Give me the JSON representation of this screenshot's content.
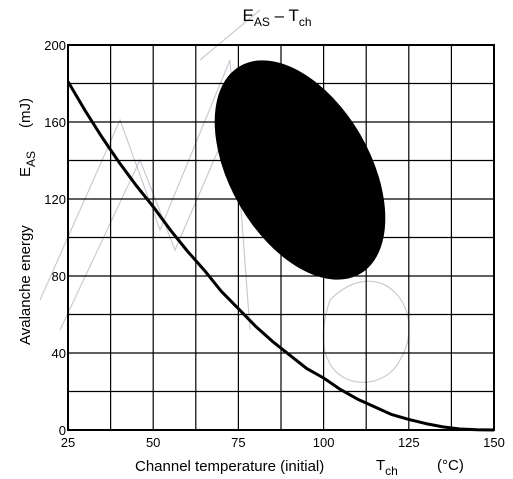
{
  "chart_data": {
    "type": "line",
    "title": {
      "main": "E",
      "sub": "AS",
      "dash": " – T",
      "sub2": "ch"
    },
    "xlabel": {
      "text": "Channel temperature (initial)",
      "symbol": "T",
      "symbol_sub": "ch",
      "unit": "(°C)"
    },
    "ylabel": {
      "text": "Avalanche energy",
      "symbol": "E",
      "symbol_sub": "AS",
      "unit": "(mJ)"
    },
    "xlim": [
      25,
      150
    ],
    "ylim": [
      0,
      200
    ],
    "x_ticks": [
      "25",
      "50",
      "75",
      "100",
      "125",
      "150"
    ],
    "y_ticks": [
      "0",
      "40",
      "80",
      "120",
      "160",
      "200"
    ],
    "grid": true,
    "series": [
      {
        "x": [
          25,
          30,
          35,
          40,
          45,
          50,
          55,
          60,
          65,
          70,
          75,
          80,
          85,
          90,
          95,
          100,
          105,
          110,
          115,
          120,
          125,
          130,
          135,
          140,
          145,
          150
        ],
        "y": [
          181,
          166,
          152,
          139,
          127,
          116,
          104,
          93,
          83,
          72,
          63,
          54,
          46,
          39,
          32,
          27,
          21,
          16,
          12,
          8,
          5.5,
          3.3,
          1.6,
          0.5,
          0.1,
          0
        ]
      }
    ]
  }
}
